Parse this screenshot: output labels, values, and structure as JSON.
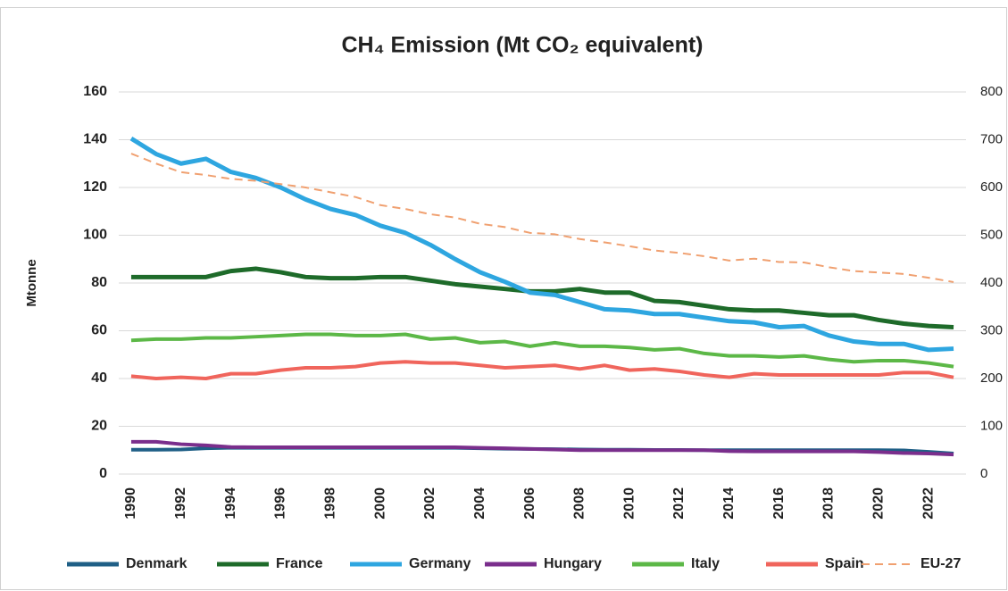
{
  "chart_data": {
    "type": "line",
    "title": "CH₄ Emission (Mt CO₂ equivalent)",
    "y_label": "Mtonne",
    "x": [
      1990,
      1991,
      1992,
      1993,
      1994,
      1995,
      1996,
      1997,
      1998,
      1999,
      2000,
      2001,
      2002,
      2003,
      2004,
      2005,
      2006,
      2007,
      2008,
      2009,
      2010,
      2011,
      2012,
      2013,
      2014,
      2015,
      2016,
      2017,
      2018,
      2019,
      2020,
      2021,
      2022,
      2023
    ],
    "xlim": [
      1989.5,
      2023.5
    ],
    "xticks": [
      1990,
      1992,
      1994,
      1996,
      1998,
      2000,
      2002,
      2004,
      2006,
      2008,
      2010,
      2012,
      2014,
      2016,
      2018,
      2020,
      2022
    ],
    "ylim": [
      0,
      160
    ],
    "yticks": [
      0,
      20,
      40,
      60,
      80,
      100,
      120,
      140,
      160
    ],
    "y2lim": [
      0,
      800
    ],
    "y2ticks": [
      0,
      100,
      200,
      300,
      400,
      500,
      600,
      700,
      800
    ],
    "grid": true,
    "legend": "bottom",
    "series": [
      {
        "name": "Denmark",
        "color": "#1f5f86",
        "values": [
          10.2,
          10.2,
          10.3,
          10.8,
          11,
          11,
          11,
          11,
          11,
          11,
          11,
          11,
          11,
          11,
          10.8,
          10.6,
          10.5,
          10.4,
          10.3,
          10.2,
          10.2,
          10.1,
          10.1,
          10,
          10,
          10,
          10,
          10,
          10,
          10,
          10,
          9.9,
          9.3,
          8.6
        ]
      },
      {
        "name": "France",
        "color": "#1e6b2a",
        "values": [
          82.5,
          82.5,
          82.5,
          82.5,
          85,
          86,
          84.5,
          82.5,
          82,
          82,
          82.5,
          82.5,
          81,
          79.5,
          78.5,
          77.5,
          76.5,
          76.5,
          77.5,
          76,
          76,
          72.5,
          72,
          70.5,
          69,
          68.5,
          68.5,
          67.5,
          66.5,
          66.5,
          64.5,
          63,
          62,
          61.5
        ]
      },
      {
        "name": "Germany",
        "color": "#2ea6e0",
        "values": [
          140.5,
          134,
          130,
          132,
          126.5,
          124,
          120,
          115,
          111,
          108.5,
          104,
          101,
          96,
          90,
          84.5,
          80.5,
          76,
          75,
          72,
          69,
          68.5,
          67,
          67,
          65.5,
          64,
          63.5,
          61.5,
          62,
          58,
          55.5,
          54.5,
          54.5,
          52,
          52.5
        ]
      },
      {
        "name": "Hungary",
        "color": "#7a2e8c",
        "values": [
          13.5,
          13.5,
          12.5,
          12,
          11.3,
          11.2,
          11.2,
          11.2,
          11.2,
          11.2,
          11.2,
          11.2,
          11.2,
          11.2,
          11,
          10.8,
          10.5,
          10.3,
          10,
          10,
          10,
          10,
          10,
          10,
          9.6,
          9.5,
          9.5,
          9.5,
          9.5,
          9.5,
          9.2,
          8.8,
          8.6,
          8.2
        ]
      },
      {
        "name": "Italy",
        "color": "#5cb847",
        "values": [
          56,
          56.5,
          56.5,
          57,
          57,
          57.5,
          58,
          58.5,
          58.5,
          58,
          58,
          58.5,
          56.5,
          57,
          55,
          55.5,
          53.5,
          55,
          53.5,
          53.5,
          53,
          52,
          52.5,
          50.5,
          49.5,
          49.5,
          49,
          49.5,
          48,
          47,
          47.5,
          47.5,
          46.5,
          45
        ]
      },
      {
        "name": "Spain",
        "color": "#f0655c",
        "values": [
          41,
          40,
          40.5,
          40,
          42,
          42,
          43.5,
          44.5,
          44.5,
          45,
          46.5,
          47,
          46.5,
          46.5,
          45.5,
          44.5,
          45,
          45.5,
          44,
          45.5,
          43.5,
          44,
          43,
          41.5,
          40.5,
          42,
          41.5,
          41.5,
          41.5,
          41.5,
          41.5,
          42.5,
          42.5,
          40.5
        ]
      },
      {
        "name": "EU-27",
        "color": "#f0a070",
        "dash": true,
        "axis": "y2",
        "values": [
          671,
          650,
          632,
          626,
          618,
          614,
          607,
          600,
          590,
          580,
          563,
          555,
          544,
          537,
          524,
          517,
          505,
          502,
          492,
          485,
          477,
          468,
          463,
          456,
          447,
          451,
          444,
          443,
          433,
          425,
          422,
          419,
          411,
          402
        ]
      }
    ]
  }
}
